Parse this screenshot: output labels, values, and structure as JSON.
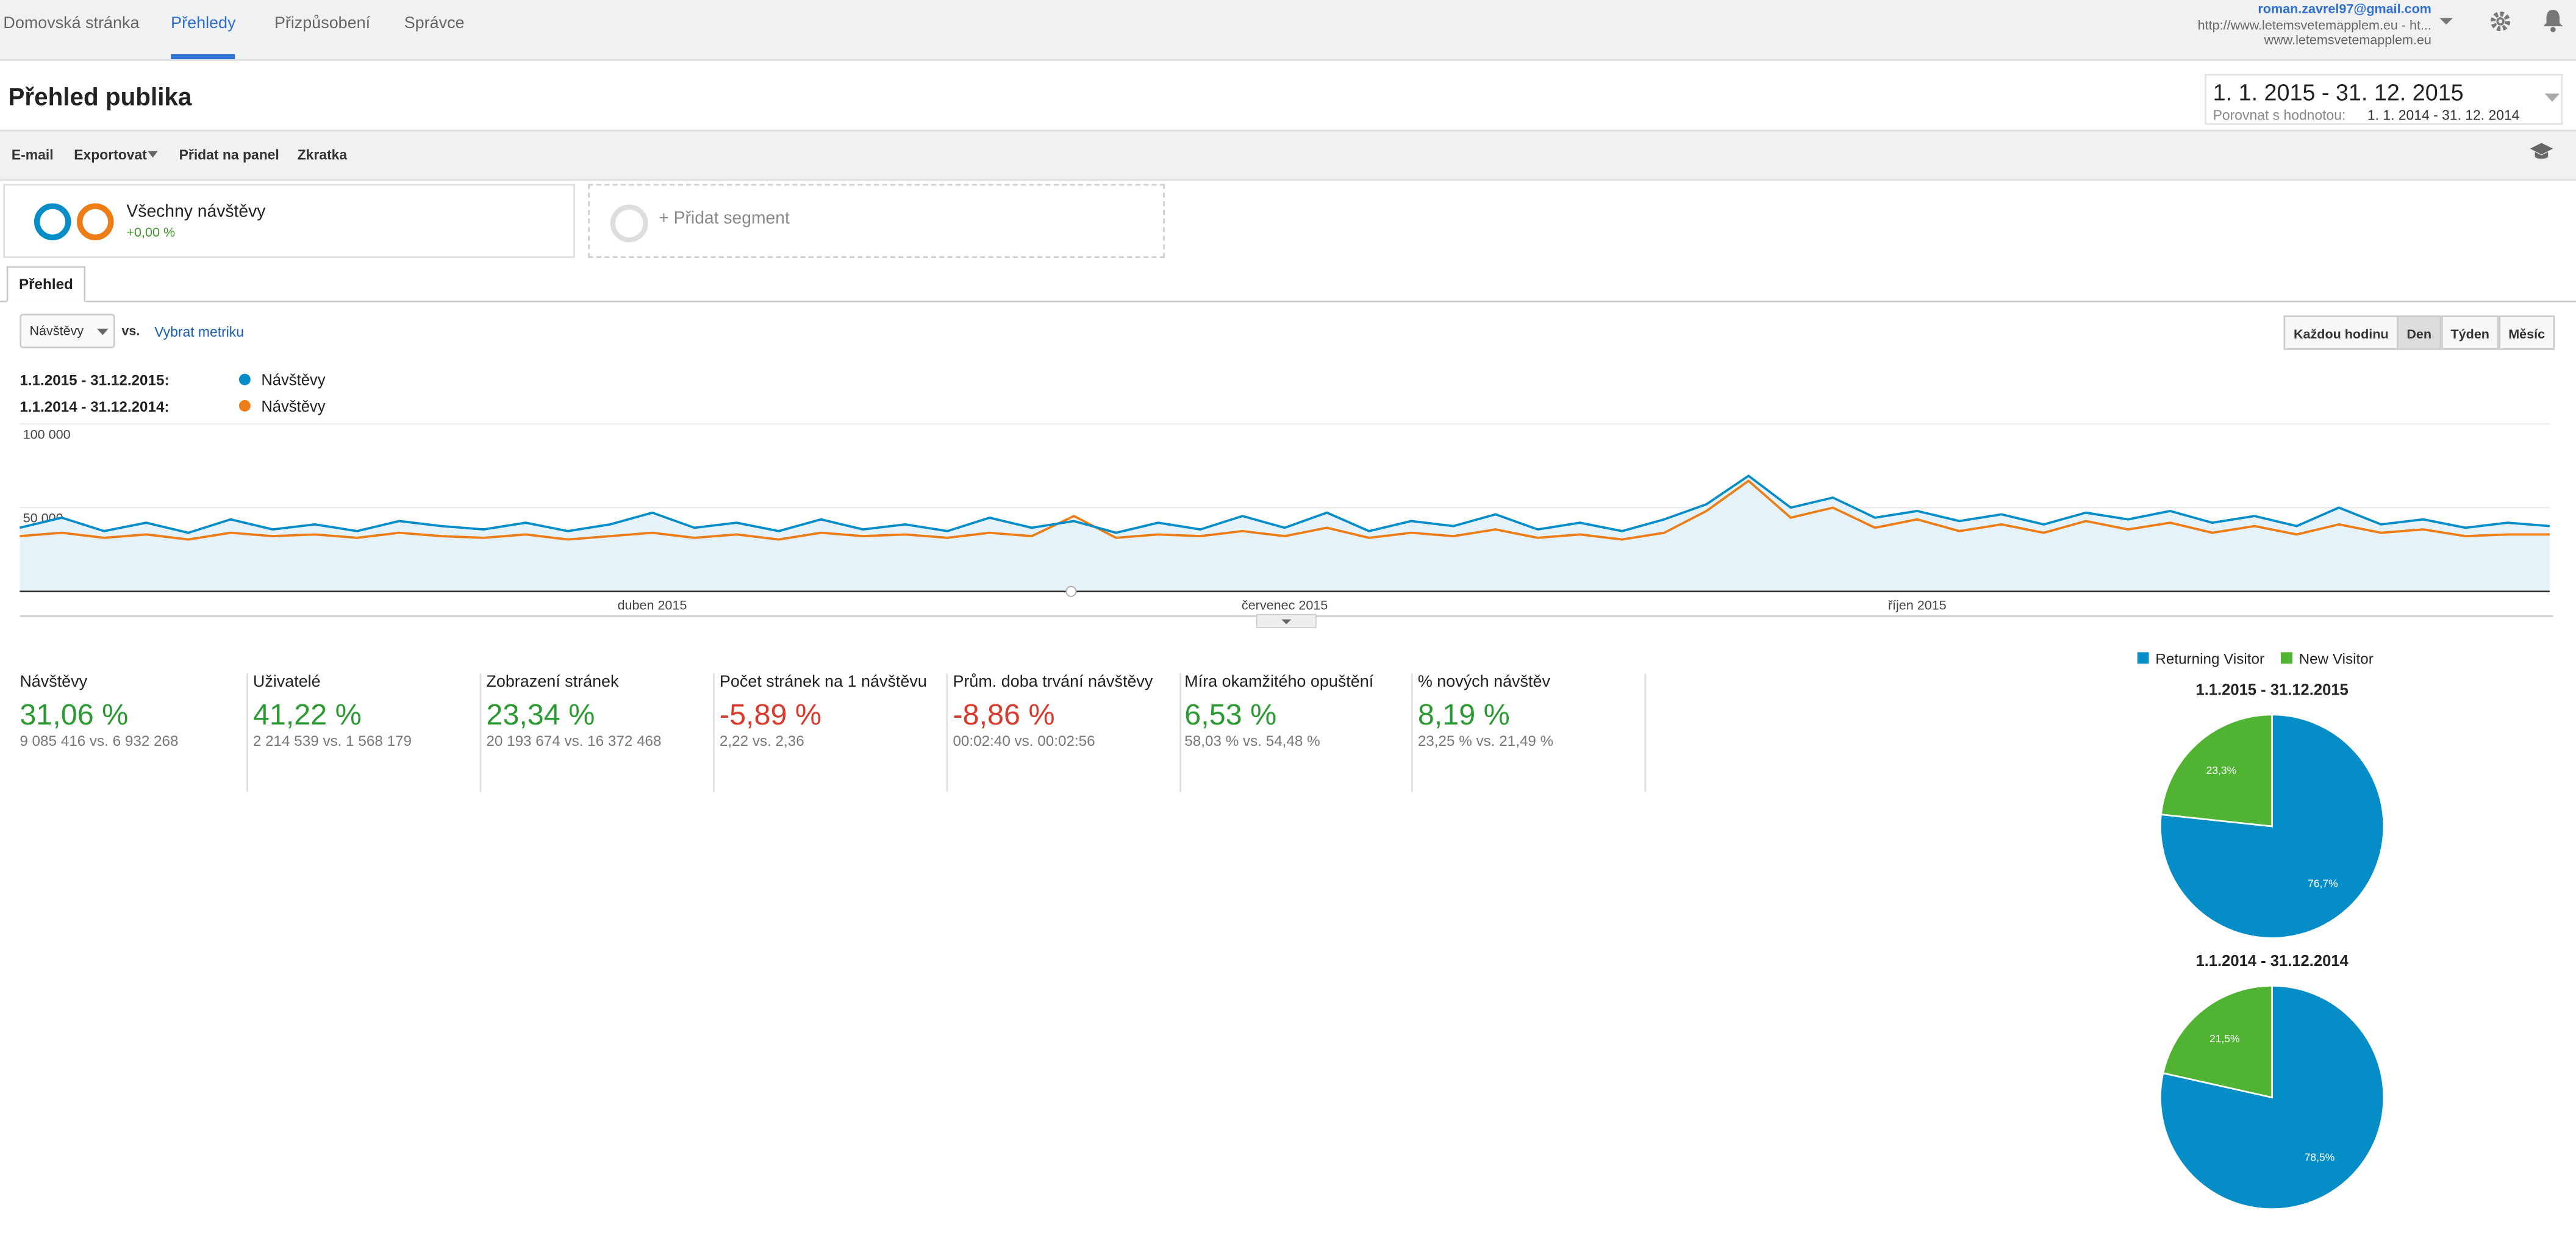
{
  "nav": {
    "items": [
      "Domovská stránka",
      "Přehledy",
      "Přizpůsobení",
      "Správce"
    ],
    "active": 1
  },
  "account": {
    "email": "roman.zavrel97@gmail.com",
    "site": "http://www.letemsvetemapplem.eu - ht...",
    "url": "www.letemsvetemapplem.eu"
  },
  "header": {
    "title": "Přehled publika",
    "date_range": "1. 1. 2015 - 31. 12. 2015",
    "compare_label": "Porovnat s hodnotou:",
    "compare_range": "1. 1. 2014 - 31. 12. 2014"
  },
  "toolbar": [
    "E-mail",
    "Exportovat",
    "Přidat na panel",
    "Zkratka"
  ],
  "segments": {
    "active": "Všechny návštěvy",
    "change": "+0,00 %",
    "add": "+ Přidat segment"
  },
  "tab": "Přehled",
  "controls": {
    "metric": "Návštěvy",
    "vs": "vs.",
    "choose": "Vybrat metriku",
    "granularity": [
      "Každou hodinu",
      "Den",
      "Týden",
      "Měsíc"
    ],
    "granularity_active": 1
  },
  "chart_data": [
    {
      "type": "line",
      "categories": [
        null,
        null,
        null,
        null,
        null,
        null,
        null,
        null,
        null,
        null,
        null,
        null,
        null,
        null,
        null,
        "duben 2015",
        null,
        null,
        null,
        null,
        null,
        null,
        null,
        null,
        null,
        null,
        null,
        null,
        null,
        null,
        "červenec 2015",
        null,
        null,
        null,
        null,
        null,
        null,
        null,
        null,
        null,
        null,
        null,
        null,
        null,
        null,
        "říjen 2015",
        null,
        null,
        null,
        null,
        null,
        null,
        null,
        null,
        null,
        null,
        null,
        null,
        null,
        null,
        null
      ],
      "series": [
        {
          "name": "Návštěvy",
          "period": "1.1.2015 - 31.12.2015:",
          "color": "#058dc7",
          "fill": "#e5f2f9",
          "values": [
            38000,
            44000,
            36000,
            41000,
            35000,
            43000,
            37000,
            40000,
            36000,
            42000,
            39000,
            37000,
            41000,
            36000,
            40000,
            47000,
            38000,
            41000,
            36000,
            43000,
            37000,
            40000,
            36000,
            44000,
            38000,
            42000,
            35000,
            41000,
            37000,
            45000,
            38000,
            47000,
            36000,
            42000,
            39000,
            46000,
            37000,
            41000,
            36000,
            43000,
            52000,
            69000,
            50000,
            56000,
            44000,
            48000,
            42000,
            46000,
            40000,
            47000,
            43000,
            48000,
            41000,
            45000,
            39000,
            50000,
            40000,
            43000,
            38000,
            41000,
            39000
          ]
        },
        {
          "name": "Návštěvy",
          "period": "1.1.2014 - 31.12.2014:",
          "color": "#ed7e17",
          "values": [
            33000,
            35000,
            32000,
            34000,
            31000,
            35000,
            33000,
            34000,
            32000,
            35000,
            33000,
            32000,
            34000,
            31000,
            33000,
            35000,
            32000,
            34000,
            31000,
            35000,
            33000,
            34000,
            32000,
            35000,
            33000,
            45000,
            32000,
            34000,
            33000,
            36000,
            33000,
            38000,
            32000,
            35000,
            33000,
            37000,
            32000,
            34000,
            31000,
            35000,
            48000,
            66000,
            44000,
            50000,
            38000,
            43000,
            36000,
            40000,
            35000,
            42000,
            37000,
            41000,
            35000,
            39000,
            34000,
            40000,
            35000,
            37000,
            33000,
            34000,
            34000
          ]
        }
      ],
      "ylim": [
        0,
        100000
      ],
      "yticks": [
        {
          "value": 50000,
          "label": "50 000"
        },
        {
          "value": 100000,
          "label": "100 000"
        }
      ],
      "grid": true
    },
    {
      "type": "pie",
      "title": "1.1.2015 - 31.12.2015",
      "categories": [
        "Returning Visitor",
        "New Visitor"
      ],
      "values": [
        76.7,
        23.3
      ],
      "value_labels": [
        "76,7%",
        "23,3%"
      ],
      "colors": [
        "#058dc7",
        "#50b432"
      ]
    },
    {
      "type": "pie",
      "title": "1.1.2014 - 31.12.2014",
      "categories": [
        "Returning Visitor",
        "New Visitor"
      ],
      "values": [
        78.5,
        21.5
      ],
      "value_labels": [
        "78,5%",
        "21,5%"
      ],
      "colors": [
        "#058dc7",
        "#50b432"
      ]
    }
  ],
  "metrics": [
    {
      "name": "Návštěvy",
      "change": "31,06 %",
      "detail": "9 085 416 vs. 6 932 268"
    },
    {
      "name": "Uživatelé",
      "change": "41,22 %",
      "detail": "2 214 539 vs. 1 568 179"
    },
    {
      "name": "Zobrazení stránek",
      "change": "23,34 %",
      "detail": "20 193 674 vs. 16 372 468"
    },
    {
      "name": "Počet stránek na 1 návštěvu",
      "change": "-5,89 %",
      "detail": "2,22 vs. 2,36"
    },
    {
      "name": "Prům. doba trvání návštěvy",
      "change": "-8,86 %",
      "detail": "00:02:40 vs. 00:02:56"
    },
    {
      "name": "Míra okamžitého opuštění",
      "change": "6,53 %",
      "detail": "58,03 % vs. 54,48 %"
    },
    {
      "name": "% nových návštěv",
      "change": "8,19 %",
      "detail": "23,25 % vs. 21,49 %"
    }
  ]
}
